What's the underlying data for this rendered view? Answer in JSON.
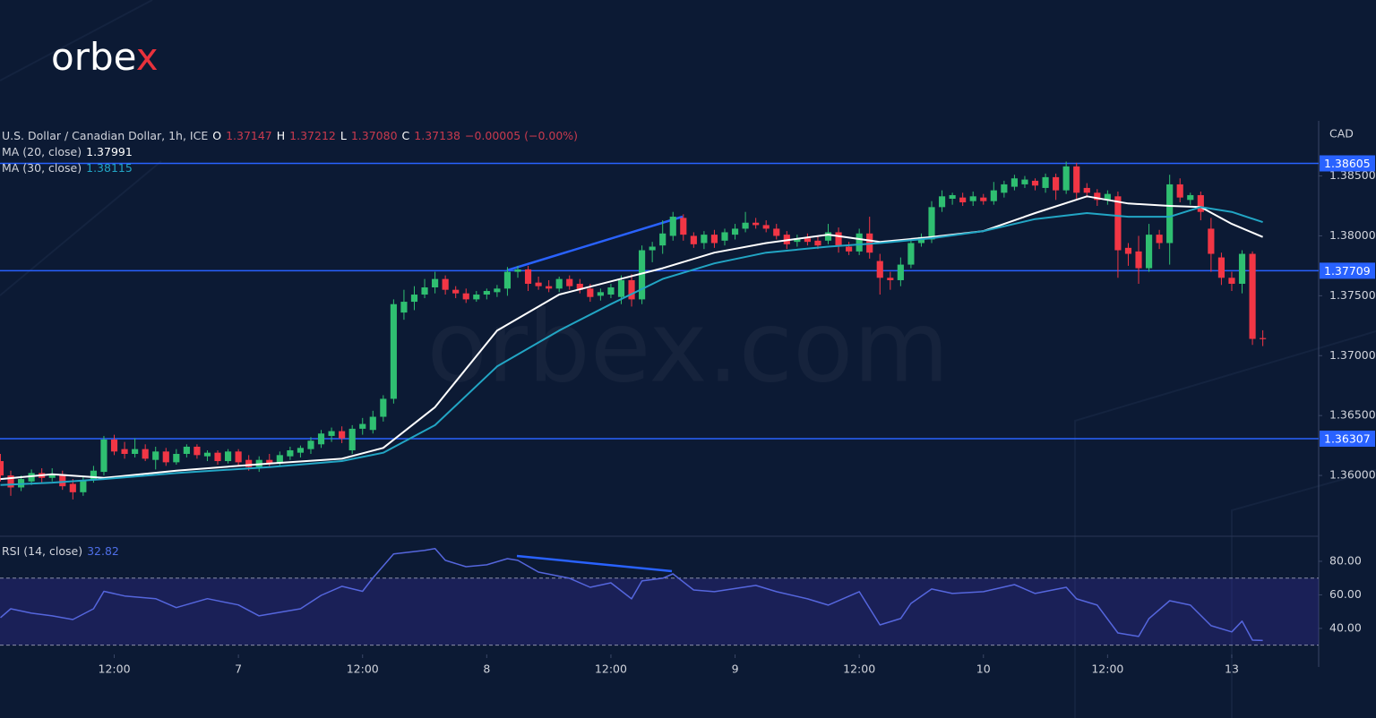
{
  "brand": {
    "logo": [
      "orbe",
      "x"
    ],
    "watermark": "orbex.com"
  },
  "chart_data": [
    {
      "type": "candlestick",
      "title": "U.S. Dollar / Canadian Dollar, 1h, ICE",
      "header_values": [
        "O",
        "1.37147",
        "H",
        "1.37212",
        "L",
        "1.37080",
        "C",
        "1.37138",
        "−0.00005 (−0.00%)"
      ],
      "y_axis_label": "CAD",
      "up_color": "#2fbf71",
      "down_color": "#f23645",
      "xlim": [
        -0.04,
        127.4
      ],
      "ylim": [
        1.355,
        1.3896
      ],
      "yticks": [
        {
          "value": 1.385,
          "label": "1.38500"
        },
        {
          "value": 1.38,
          "label": "1.38000"
        },
        {
          "value": 1.375,
          "label": "1.37500"
        },
        {
          "value": 1.37,
          "label": "1.37000"
        },
        {
          "value": 1.365,
          "label": "1.36500"
        },
        {
          "value": 1.36,
          "label": "1.36000"
        }
      ],
      "levels": [
        1.38605,
        1.37709,
        1.36307
      ],
      "level_color": "#2962ff",
      "x": [
        0,
        1,
        2,
        3,
        4,
        5,
        6,
        7,
        8,
        9,
        10,
        11,
        12,
        13,
        14,
        15,
        16,
        17,
        18,
        19,
        20,
        21,
        22,
        23,
        24,
        25,
        26,
        27,
        28,
        29,
        30,
        31,
        32,
        33,
        34,
        35,
        36,
        37,
        38,
        39,
        40,
        41,
        42,
        43,
        44,
        45,
        46,
        47,
        48,
        49,
        50,
        51,
        52,
        53,
        54,
        55,
        56,
        57,
        58,
        59,
        60,
        61,
        62,
        63,
        64,
        65,
        66,
        67,
        68,
        69,
        70,
        71,
        72,
        73,
        74,
        75,
        76,
        77,
        78,
        79,
        80,
        81,
        82,
        83,
        84,
        85,
        86,
        87,
        88,
        89,
        90,
        91,
        92,
        93,
        94,
        95,
        96,
        97,
        98,
        99,
        100,
        101,
        102,
        103,
        104,
        105,
        106,
        107,
        108,
        109,
        110,
        111,
        112,
        113,
        114,
        115,
        116,
        117,
        118,
        119,
        120,
        121,
        122
      ],
      "ohlc": [
        [
          1.3612,
          1.3618,
          1.3595,
          1.36
        ],
        [
          1.36,
          1.3604,
          1.3583,
          1.359
        ],
        [
          1.359,
          1.36,
          1.3587,
          1.3597
        ],
        [
          1.3595,
          1.3605,
          1.3592,
          1.3602
        ],
        [
          1.3602,
          1.3606,
          1.3594,
          1.3598
        ],
        [
          1.3598,
          1.3606,
          1.3595,
          1.3601
        ],
        [
          1.3601,
          1.3604,
          1.3588,
          1.3591
        ],
        [
          1.3593,
          1.3597,
          1.358,
          1.3586
        ],
        [
          1.3586,
          1.3599,
          1.3583,
          1.3596
        ],
        [
          1.3596,
          1.3608,
          1.3594,
          1.3604
        ],
        [
          1.3603,
          1.3633,
          1.36,
          1.363
        ],
        [
          1.363,
          1.3634,
          1.3617,
          1.362
        ],
        [
          1.3622,
          1.3628,
          1.3614,
          1.3618
        ],
        [
          1.3618,
          1.3631,
          1.3615,
          1.3622
        ],
        [
          1.3622,
          1.3626,
          1.3612,
          1.3614
        ],
        [
          1.3613,
          1.3624,
          1.3605,
          1.362
        ],
        [
          1.362,
          1.3623,
          1.3608,
          1.3611
        ],
        [
          1.3611,
          1.3622,
          1.3609,
          1.3618
        ],
        [
          1.3618,
          1.3626,
          1.3615,
          1.3624
        ],
        [
          1.3624,
          1.3626,
          1.3614,
          1.3617
        ],
        [
          1.3616,
          1.3621,
          1.3612,
          1.3619
        ],
        [
          1.3619,
          1.3621,
          1.3609,
          1.3612
        ],
        [
          1.3612,
          1.3622,
          1.361,
          1.362
        ],
        [
          1.362,
          1.3622,
          1.3608,
          1.3611
        ],
        [
          1.3613,
          1.3617,
          1.3604,
          1.3607
        ],
        [
          1.3607,
          1.3616,
          1.3603,
          1.3613
        ],
        [
          1.3613,
          1.3618,
          1.3607,
          1.361
        ],
        [
          1.361,
          1.362,
          1.3608,
          1.3617
        ],
        [
          1.3616,
          1.3624,
          1.3613,
          1.3621
        ],
        [
          1.3619,
          1.3625,
          1.3615,
          1.3623
        ],
        [
          1.3622,
          1.3632,
          1.3618,
          1.3629
        ],
        [
          1.3626,
          1.3638,
          1.3623,
          1.3635
        ],
        [
          1.3633,
          1.364,
          1.3628,
          1.3637
        ],
        [
          1.3637,
          1.3641,
          1.3627,
          1.3631
        ],
        [
          1.3621,
          1.3642,
          1.3618,
          1.3639
        ],
        [
          1.3639,
          1.3648,
          1.3634,
          1.3643
        ],
        [
          1.3638,
          1.3654,
          1.3635,
          1.3649
        ],
        [
          1.3649,
          1.3667,
          1.3645,
          1.3664
        ],
        [
          1.3664,
          1.3747,
          1.366,
          1.3743
        ],
        [
          1.3736,
          1.3755,
          1.373,
          1.3745
        ],
        [
          1.3745,
          1.3758,
          1.3738,
          1.3751
        ],
        [
          1.3751,
          1.3764,
          1.3748,
          1.3757
        ],
        [
          1.3757,
          1.377,
          1.3752,
          1.3764
        ],
        [
          1.3764,
          1.3767,
          1.3751,
          1.3755
        ],
        [
          1.3755,
          1.3758,
          1.3748,
          1.3752
        ],
        [
          1.3752,
          1.3756,
          1.3744,
          1.3747
        ],
        [
          1.3747,
          1.3754,
          1.3745,
          1.3751
        ],
        [
          1.3751,
          1.3756,
          1.3747,
          1.3754
        ],
        [
          1.3753,
          1.3759,
          1.3749,
          1.3756
        ],
        [
          1.3756,
          1.3774,
          1.375,
          1.377
        ],
        [
          1.377,
          1.3775,
          1.3765,
          1.3772
        ],
        [
          1.3772,
          1.3775,
          1.3754,
          1.376
        ],
        [
          1.3761,
          1.3766,
          1.3755,
          1.3758
        ],
        [
          1.3758,
          1.3763,
          1.3753,
          1.3756
        ],
        [
          1.3756,
          1.3766,
          1.3753,
          1.3764
        ],
        [
          1.3764,
          1.3767,
          1.3755,
          1.3758
        ],
        [
          1.376,
          1.3764,
          1.3752,
          1.3755
        ],
        [
          1.3756,
          1.376,
          1.3745,
          1.3749
        ],
        [
          1.375,
          1.3756,
          1.3746,
          1.3753
        ],
        [
          1.3751,
          1.376,
          1.3748,
          1.3757
        ],
        [
          1.3749,
          1.3767,
          1.3743,
          1.3763
        ],
        [
          1.3763,
          1.3768,
          1.3741,
          1.3747
        ],
        [
          1.3747,
          1.3792,
          1.3743,
          1.3788
        ],
        [
          1.3788,
          1.3795,
          1.3778,
          1.3791
        ],
        [
          1.3792,
          1.3813,
          1.3785,
          1.3802
        ],
        [
          1.38,
          1.382,
          1.3796,
          1.3816
        ],
        [
          1.3815,
          1.3818,
          1.3796,
          1.3801
        ],
        [
          1.38,
          1.3803,
          1.379,
          1.3793
        ],
        [
          1.3794,
          1.3804,
          1.3789,
          1.3801
        ],
        [
          1.3801,
          1.3805,
          1.379,
          1.3794
        ],
        [
          1.3796,
          1.3806,
          1.3792,
          1.3803
        ],
        [
          1.3801,
          1.381,
          1.3797,
          1.3806
        ],
        [
          1.3806,
          1.382,
          1.3803,
          1.3811
        ],
        [
          1.3811,
          1.3815,
          1.3806,
          1.3809
        ],
        [
          1.3809,
          1.3813,
          1.3803,
          1.3806
        ],
        [
          1.3806,
          1.381,
          1.3797,
          1.38
        ],
        [
          1.3801,
          1.3804,
          1.3789,
          1.3793
        ],
        [
          1.3795,
          1.3801,
          1.3791,
          1.3798
        ],
        [
          1.3798,
          1.3802,
          1.3792,
          1.3795
        ],
        [
          1.3796,
          1.38,
          1.3789,
          1.3792
        ],
        [
          1.3796,
          1.381,
          1.3793,
          1.3803
        ],
        [
          1.3803,
          1.3807,
          1.3786,
          1.3791
        ],
        [
          1.3791,
          1.3795,
          1.3784,
          1.3787
        ],
        [
          1.3787,
          1.3806,
          1.3784,
          1.3802
        ],
        [
          1.3802,
          1.3816,
          1.3781,
          1.3786
        ],
        [
          1.3779,
          1.3785,
          1.3751,
          1.3765
        ],
        [
          1.3765,
          1.377,
          1.3755,
          1.3763
        ],
        [
          1.3763,
          1.3782,
          1.3758,
          1.3776
        ],
        [
          1.3776,
          1.3796,
          1.3773,
          1.3794
        ],
        [
          1.3794,
          1.3802,
          1.3791,
          1.3799
        ],
        [
          1.3797,
          1.3829,
          1.3794,
          1.3824
        ],
        [
          1.3824,
          1.3838,
          1.382,
          1.3833
        ],
        [
          1.3831,
          1.3836,
          1.3826,
          1.3834
        ],
        [
          1.3832,
          1.3836,
          1.3825,
          1.3828
        ],
        [
          1.3829,
          1.3837,
          1.3825,
          1.3833
        ],
        [
          1.3832,
          1.3835,
          1.3826,
          1.3829
        ],
        [
          1.3829,
          1.3845,
          1.3826,
          1.3838
        ],
        [
          1.3836,
          1.3846,
          1.3832,
          1.3843
        ],
        [
          1.3841,
          1.3851,
          1.3838,
          1.3848
        ],
        [
          1.3843,
          1.385,
          1.384,
          1.3847
        ],
        [
          1.3846,
          1.3848,
          1.3838,
          1.3842
        ],
        [
          1.384,
          1.3852,
          1.3836,
          1.3849
        ],
        [
          1.3849,
          1.3852,
          1.383,
          1.3838
        ],
        [
          1.3838,
          1.3862,
          1.3835,
          1.3858
        ],
        [
          1.3858,
          1.3861,
          1.383,
          1.3836
        ],
        [
          1.384,
          1.3844,
          1.3832,
          1.3836
        ],
        [
          1.3836,
          1.3839,
          1.3825,
          1.383
        ],
        [
          1.383,
          1.3838,
          1.3826,
          1.3835
        ],
        [
          1.3833,
          1.3837,
          1.3765,
          1.3788
        ],
        [
          1.379,
          1.3794,
          1.3775,
          1.3785
        ],
        [
          1.3787,
          1.38,
          1.376,
          1.3773
        ],
        [
          1.3773,
          1.381,
          1.377,
          1.3801
        ],
        [
          1.3801,
          1.3805,
          1.3789,
          1.3794
        ],
        [
          1.3794,
          1.3851,
          1.3776,
          1.3843
        ],
        [
          1.3843,
          1.3848,
          1.3828,
          1.3832
        ],
        [
          1.383,
          1.3836,
          1.3826,
          1.3834
        ],
        [
          1.3834,
          1.3837,
          1.3813,
          1.382
        ],
        [
          1.3806,
          1.3815,
          1.377,
          1.3785
        ],
        [
          1.3782,
          1.3786,
          1.3759,
          1.3765
        ],
        [
          1.3765,
          1.377,
          1.3754,
          1.376
        ],
        [
          1.376,
          1.3788,
          1.3752,
          1.3785
        ],
        [
          1.3785,
          1.3787,
          1.3709,
          1.3714
        ],
        [
          1.37147,
          1.37212,
          1.3708,
          1.37138
        ]
      ],
      "overlays": [
        {
          "name": "MA (20, close)",
          "color": "#ffffff",
          "x": [
            0,
            5,
            10,
            17,
            26,
            33,
            37,
            42,
            48,
            54,
            59,
            64,
            69,
            74,
            80,
            85,
            90,
            95,
            100,
            105,
            109,
            113,
            116,
            119,
            122
          ],
          "values": [
            1.3597,
            1.3601,
            1.3598,
            1.3604,
            1.361,
            1.3614,
            1.3623,
            1.3657,
            1.3721,
            1.3751,
            1.3762,
            1.3773,
            1.3786,
            1.3794,
            1.3801,
            1.3795,
            1.3799,
            1.3804,
            1.3819,
            1.3833,
            1.3827,
            1.3825,
            1.3824,
            1.381,
            1.37991
          ]
        },
        {
          "name": "MA (30, close)",
          "color": "#22a5c4",
          "x": [
            0,
            5,
            10,
            17,
            26,
            33,
            37,
            42,
            48,
            54,
            59,
            64,
            69,
            74,
            80,
            85,
            90,
            95,
            100,
            105,
            109,
            113,
            116,
            119,
            122
          ],
          "values": [
            1.3592,
            1.3594,
            1.3597,
            1.3602,
            1.3607,
            1.3612,
            1.3619,
            1.3642,
            1.3691,
            1.3721,
            1.3743,
            1.3764,
            1.3777,
            1.3786,
            1.3791,
            1.3794,
            1.3798,
            1.3804,
            1.3814,
            1.3819,
            1.3816,
            1.3816,
            1.3824,
            1.382,
            1.38115
          ]
        }
      ]
    },
    {
      "type": "line",
      "title": "RSI (14, close)",
      "color": "#5566dd",
      "band": [
        30,
        70
      ],
      "band_color": "#3a2fa8",
      "xlim": [
        -0.04,
        127.4
      ],
      "ylim": [
        25,
        94.4
      ],
      "yticks": [
        {
          "value": 80,
          "label": "80.00"
        },
        {
          "value": 60,
          "label": "60.00"
        },
        {
          "value": 40,
          "label": "40.00"
        }
      ],
      "xticks": [
        {
          "value": 11,
          "label": "12:00"
        },
        {
          "value": 23,
          "label": "7"
        },
        {
          "value": 35,
          "label": "12:00"
        },
        {
          "value": 47,
          "label": "8"
        },
        {
          "value": 59,
          "label": "12:00"
        },
        {
          "value": 71,
          "label": "9"
        },
        {
          "value": 83,
          "label": "12:00"
        },
        {
          "value": 95,
          "label": "10"
        },
        {
          "value": 107,
          "label": "12:00"
        },
        {
          "value": 119,
          "label": "13"
        }
      ],
      "x": [
        0,
        1,
        3,
        5,
        7,
        9,
        10,
        12,
        15,
        17,
        20,
        23,
        25,
        29,
        31,
        33,
        35,
        36,
        38,
        41,
        42,
        43,
        45,
        47,
        49,
        50,
        52,
        55,
        57,
        59,
        61,
        62,
        64,
        65,
        67,
        69,
        73,
        75,
        78,
        80,
        83,
        85,
        87,
        88,
        90,
        92,
        95,
        98,
        100,
        103,
        104,
        106,
        108,
        110,
        111,
        113,
        115,
        117,
        119,
        120,
        121,
        122
      ],
      "values": [
        46.4,
        51.7,
        49.1,
        47.5,
        45.3,
        51.7,
        62.1,
        59.3,
        57.7,
        52.4,
        57.7,
        54.0,
        47.5,
        51.7,
        59.7,
        65.1,
        62.1,
        70.1,
        84.4,
        86.5,
        87.6,
        80.6,
        76.8,
        77.9,
        81.6,
        80.6,
        73.6,
        69.9,
        64.5,
        67.2,
        57.6,
        68.3,
        69.9,
        72.5,
        62.9,
        61.9,
        65.6,
        61.9,
        57.6,
        53.9,
        61.9,
        42.1,
        45.9,
        54.9,
        63.5,
        60.8,
        61.9,
        66.1,
        60.8,
        64.5,
        57.6,
        53.9,
        37.3,
        35.2,
        45.9,
        56.5,
        53.9,
        41.6,
        37.9,
        44.3,
        33.0,
        32.82
      ]
    }
  ]
}
